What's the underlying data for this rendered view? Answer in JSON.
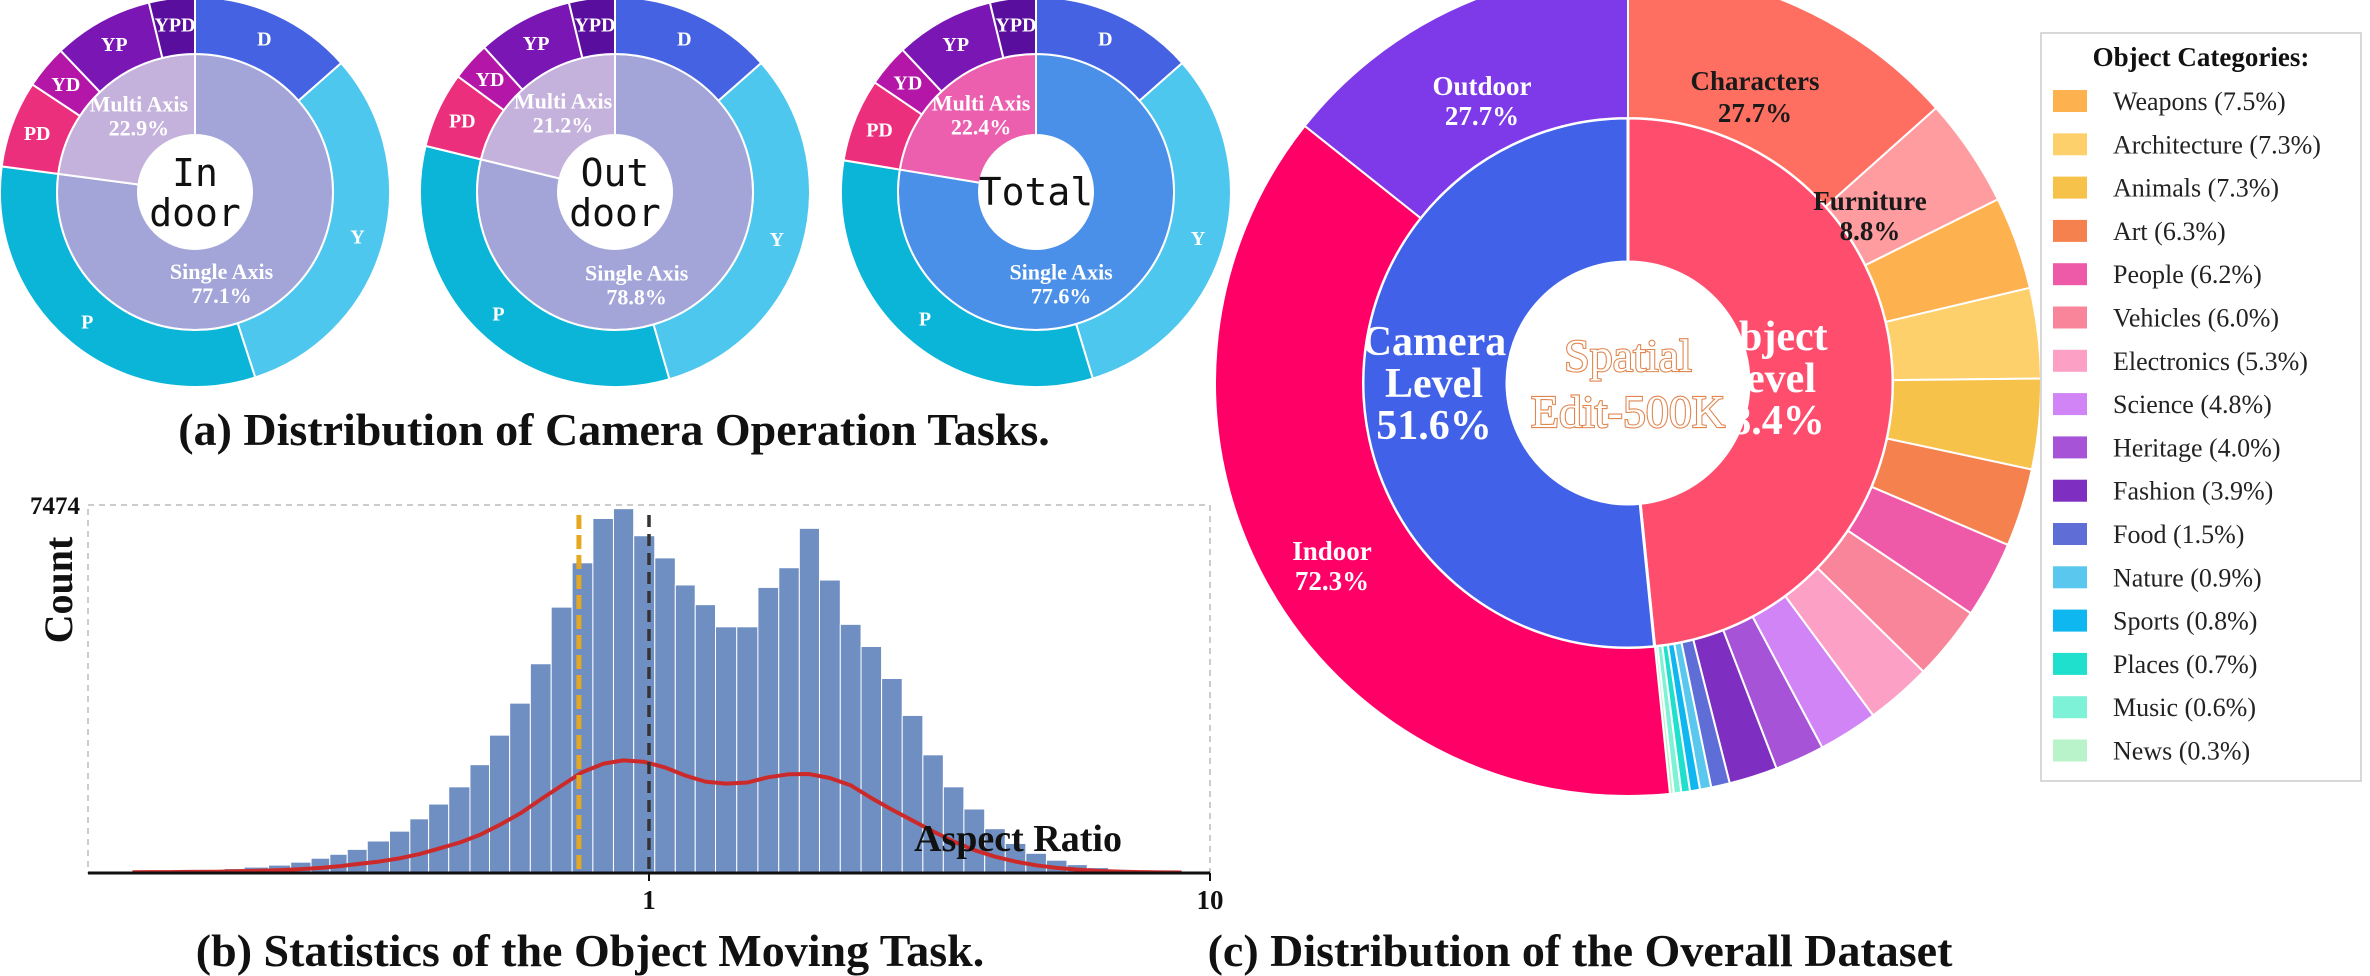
{
  "captions": {
    "a": "(a) Distribution of Camera Operation Tasks.",
    "b": "(b) Statistics of the Object Moving Task.",
    "c": "(c) Distribution of the Overall Dataset"
  },
  "chart_data": [
    {
      "type": "pie",
      "chart_id": "indoor",
      "center_label": [
        "In",
        "door"
      ],
      "inner": [
        {
          "name": "Single Axis",
          "value": 77.1,
          "label": "77.1%",
          "color": "#a3a5d8"
        },
        {
          "name": "Multi Axis",
          "value": 22.9,
          "label": "22.9%",
          "color": "#c5b2dc"
        }
      ],
      "outer": [
        {
          "name": "D",
          "value": 13.5,
          "color": "#4562e2"
        },
        {
          "name": "Y",
          "value": 31.5,
          "color": "#4ec7ee"
        },
        {
          "name": "P",
          "value": 32.1,
          "color": "#0ab5d8"
        },
        {
          "name": "PD",
          "value": 7.2,
          "color": "#ec2f7c"
        },
        {
          "name": "YD",
          "value": 3.6,
          "color": "#b417a7"
        },
        {
          "name": "YP",
          "value": 8.3,
          "color": "#7a16b4"
        },
        {
          "name": "YPD",
          "value": 3.8,
          "color": "#5a0e9e"
        }
      ]
    },
    {
      "type": "pie",
      "chart_id": "outdoor",
      "center_label": [
        "Out",
        "door"
      ],
      "inner": [
        {
          "name": "Single Axis",
          "value": 78.8,
          "label": "78.8%",
          "color": "#a3a5d8"
        },
        {
          "name": "Multi Axis",
          "value": 21.2,
          "label": "21.2%",
          "color": "#c5b2dc"
        }
      ],
      "outer": [
        {
          "name": "D",
          "value": 13.5,
          "color": "#4562e2"
        },
        {
          "name": "Y",
          "value": 32.0,
          "color": "#4ec7ee"
        },
        {
          "name": "P",
          "value": 33.3,
          "color": "#0ab5d8"
        },
        {
          "name": "PD",
          "value": 6.3,
          "color": "#ec2f7c"
        },
        {
          "name": "YD",
          "value": 3.2,
          "color": "#b417a7"
        },
        {
          "name": "YP",
          "value": 7.9,
          "color": "#7a16b4"
        },
        {
          "name": "YPD",
          "value": 3.8,
          "color": "#5a0e9e"
        }
      ]
    },
    {
      "type": "pie",
      "chart_id": "total",
      "center_label": [
        "Total"
      ],
      "inner": [
        {
          "name": "Single Axis",
          "value": 77.6,
          "label": "77.6%",
          "color": "#4a90e8"
        },
        {
          "name": "Multi Axis",
          "value": 22.4,
          "label": "22.4%",
          "color": "#ec5fae"
        }
      ],
      "outer": [
        {
          "name": "D",
          "value": 13.5,
          "color": "#4562e2"
        },
        {
          "name": "Y",
          "value": 31.8,
          "color": "#4ec7ee"
        },
        {
          "name": "P",
          "value": 32.3,
          "color": "#0ab5d8"
        },
        {
          "name": "PD",
          "value": 6.9,
          "color": "#ec2f7c"
        },
        {
          "name": "YD",
          "value": 3.5,
          "color": "#b417a7"
        },
        {
          "name": "YP",
          "value": 8.2,
          "color": "#7a16b4"
        },
        {
          "name": "YPD",
          "value": 3.8,
          "color": "#5a0e9e"
        }
      ]
    },
    {
      "type": "bar",
      "chart_id": "aspect-ratio-histogram",
      "xlabel": "Aspect Ratio",
      "ylabel": "Count",
      "xscale": "log",
      "xlim": [
        0.1,
        10
      ],
      "ylim": [
        0,
        7474
      ],
      "yticks": [
        7474
      ],
      "xticks": [
        1,
        10
      ],
      "grid": false,
      "bar_color": "#6f8fc3",
      "kde_color": "#cc2a2a",
      "mean_line": {
        "x": 1.0,
        "color": "#333333"
      },
      "median_line": {
        "x": 0.75,
        "color": "#e5a820"
      },
      "bins": [
        {
          "x": 0.12,
          "y": 40
        },
        {
          "x": 0.13,
          "y": 50
        },
        {
          "x": 0.14,
          "y": 55
        },
        {
          "x": 0.15,
          "y": 60
        },
        {
          "x": 0.17,
          "y": 70
        },
        {
          "x": 0.18,
          "y": 90
        },
        {
          "x": 0.2,
          "y": 120
        },
        {
          "x": 0.22,
          "y": 160
        },
        {
          "x": 0.24,
          "y": 220
        },
        {
          "x": 0.26,
          "y": 300
        },
        {
          "x": 0.28,
          "y": 380
        },
        {
          "x": 0.3,
          "y": 480
        },
        {
          "x": 0.33,
          "y": 650
        },
        {
          "x": 0.36,
          "y": 850
        },
        {
          "x": 0.39,
          "y": 1100
        },
        {
          "x": 0.42,
          "y": 1400
        },
        {
          "x": 0.46,
          "y": 1750
        },
        {
          "x": 0.5,
          "y": 2200
        },
        {
          "x": 0.54,
          "y": 2800
        },
        {
          "x": 0.59,
          "y": 3450
        },
        {
          "x": 0.64,
          "y": 4250
        },
        {
          "x": 0.7,
          "y": 5400
        },
        {
          "x": 0.76,
          "y": 6300
        },
        {
          "x": 0.83,
          "y": 7200
        },
        {
          "x": 0.9,
          "y": 7400
        },
        {
          "x": 0.98,
          "y": 6850
        },
        {
          "x": 1.07,
          "y": 6400
        },
        {
          "x": 1.16,
          "y": 5850
        },
        {
          "x": 1.26,
          "y": 5450
        },
        {
          "x": 1.37,
          "y": 5000
        },
        {
          "x": 1.5,
          "y": 5000
        },
        {
          "x": 1.63,
          "y": 5800
        },
        {
          "x": 1.78,
          "y": 6200
        },
        {
          "x": 1.93,
          "y": 7000
        },
        {
          "x": 2.1,
          "y": 5950
        },
        {
          "x": 2.29,
          "y": 5050
        },
        {
          "x": 2.49,
          "y": 4600
        },
        {
          "x": 2.71,
          "y": 3950
        },
        {
          "x": 2.95,
          "y": 3200
        },
        {
          "x": 3.21,
          "y": 2400
        },
        {
          "x": 3.49,
          "y": 1750
        },
        {
          "x": 3.8,
          "y": 1300
        },
        {
          "x": 4.14,
          "y": 900
        },
        {
          "x": 4.5,
          "y": 600
        },
        {
          "x": 4.9,
          "y": 400
        },
        {
          "x": 5.33,
          "y": 260
        },
        {
          "x": 5.8,
          "y": 170
        },
        {
          "x": 6.3,
          "y": 110
        },
        {
          "x": 6.9,
          "y": 70
        },
        {
          "x": 7.5,
          "y": 45
        },
        {
          "x": 8.2,
          "y": 30
        },
        {
          "x": 8.9,
          "y": 20
        }
      ]
    },
    {
      "type": "pie",
      "chart_id": "overall-dataset",
      "center_label": [
        "Spatial",
        "Edit-500K"
      ],
      "inner": [
        {
          "name": "Object Level",
          "label_lines": [
            "Object",
            "Level",
            "48.4%"
          ],
          "value": 48.4,
          "color": "#ff4d6e"
        },
        {
          "name": "Camera Level",
          "label_lines": [
            "Camera",
            "Level",
            "51.6%"
          ],
          "value": 51.6,
          "color": "#4061e8"
        }
      ],
      "outer": [
        {
          "name": "Characters",
          "value": 13.4,
          "label": "27.7%",
          "color": "#ff6f61"
        },
        {
          "name": "Furniture",
          "value": 4.26,
          "label": "8.8%",
          "color": "#ff9ca0"
        },
        {
          "name": "Weapons",
          "value": 3.63,
          "color": "#fdb14f"
        },
        {
          "name": "Architecture",
          "value": 3.53,
          "color": "#fdd06c"
        },
        {
          "name": "Animals",
          "value": 3.53,
          "color": "#f7c24a"
        },
        {
          "name": "Art",
          "value": 3.05,
          "color": "#f5824e"
        },
        {
          "name": "People",
          "value": 3.0,
          "color": "#ee5aa8"
        },
        {
          "name": "Vehicles",
          "value": 2.9,
          "color": "#f8859a"
        },
        {
          "name": "Electronics",
          "value": 2.57,
          "color": "#fca0c6"
        },
        {
          "name": "Science",
          "value": 2.32,
          "color": "#d184f5"
        },
        {
          "name": "Heritage",
          "value": 1.94,
          "color": "#a653d8"
        },
        {
          "name": "Fashion",
          "value": 1.89,
          "color": "#7e2ec0"
        },
        {
          "name": "Food",
          "value": 0.73,
          "color": "#5e6ed6"
        },
        {
          "name": "Nature",
          "value": 0.44,
          "color": "#5ac8ee"
        },
        {
          "name": "Sports",
          "value": 0.39,
          "color": "#0fb7f0"
        },
        {
          "name": "Places",
          "value": 0.34,
          "color": "#1ee0cc"
        },
        {
          "name": "Music",
          "value": 0.29,
          "color": "#7ef2d6"
        },
        {
          "name": "News",
          "value": 0.15,
          "color": "#b9f3c9"
        },
        {
          "name": "Indoor",
          "value": 37.3,
          "label": "72.3%",
          "color": "#ff0066"
        },
        {
          "name": "Outdoor",
          "value": 14.3,
          "label": "27.7%",
          "color": "#7e3ae8"
        }
      ],
      "legend": {
        "title": "Object Categories:",
        "placement": "right",
        "items": [
          {
            "label": "Weapons (7.5%)",
            "color": "#fdb14f"
          },
          {
            "label": "Architecture (7.3%)",
            "color": "#fdd06c"
          },
          {
            "label": "Animals (7.3%)",
            "color": "#f7c24a"
          },
          {
            "label": "Art (6.3%)",
            "color": "#f5824e"
          },
          {
            "label": "People (6.2%)",
            "color": "#ee5aa8"
          },
          {
            "label": "Vehicles (6.0%)",
            "color": "#f8859a"
          },
          {
            "label": "Electronics (5.3%)",
            "color": "#fca0c6"
          },
          {
            "label": "Science (4.8%)",
            "color": "#d184f5"
          },
          {
            "label": "Heritage (4.0%)",
            "color": "#a653d8"
          },
          {
            "label": "Fashion (3.9%)",
            "color": "#7e2ec0"
          },
          {
            "label": "Food (1.5%)",
            "color": "#5e6ed6"
          },
          {
            "label": "Nature (0.9%)",
            "color": "#5ac8ee"
          },
          {
            "label": "Sports (0.8%)",
            "color": "#0fb7f0"
          },
          {
            "label": "Places (0.7%)",
            "color": "#1ee0cc"
          },
          {
            "label": "Music (0.6%)",
            "color": "#7ef2d6"
          },
          {
            "label": "News (0.3%)",
            "color": "#b9f3c9"
          }
        ]
      }
    }
  ]
}
